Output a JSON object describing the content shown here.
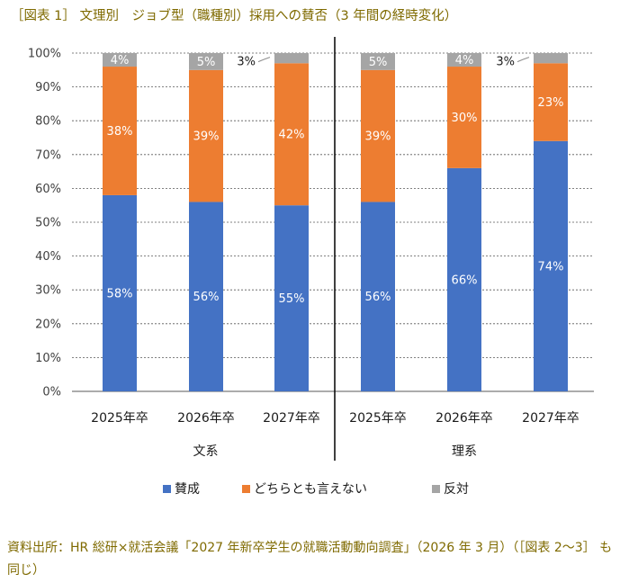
{
  "title": "［図表 1］ 文理別　ジョブ型（職種別）採用への賛否（3 年間の経時変化）",
  "source": "資料出所：HR 総研×就活会議「2027 年新卒学生の就職活動動向調査」（2026 年 3 月）（［図表 2～3］ も同じ）",
  "chart_data": {
    "type": "bar",
    "stacked": true,
    "ylim": [
      0,
      100
    ],
    "yticks": [
      "0%",
      "10%",
      "20%",
      "30%",
      "40%",
      "50%",
      "60%",
      "70%",
      "80%",
      "90%",
      "100%"
    ],
    "groups": [
      "文系",
      "理系"
    ],
    "categories": [
      "2025年卒",
      "2026年卒",
      "2027年卒",
      "2025年卒",
      "2026年卒",
      "2027年卒"
    ],
    "group_of_category": [
      0,
      0,
      0,
      1,
      1,
      1
    ],
    "series": [
      {
        "name": "賛成",
        "color": "#4472c4",
        "values": [
          58,
          56,
          55,
          56,
          66,
          74
        ],
        "labels": [
          "58%",
          "56%",
          "55%",
          "56%",
          "66%",
          "74%"
        ]
      },
      {
        "name": "どちらとも言えない",
        "color": "#ed7d31",
        "values": [
          38,
          39,
          42,
          39,
          30,
          23
        ],
        "labels": [
          "38%",
          "39%",
          "42%",
          "39%",
          "30%",
          "23%"
        ]
      },
      {
        "name": "反対",
        "color": "#a5a5a5",
        "values": [
          4,
          5,
          3,
          5,
          4,
          3
        ],
        "labels": [
          "4%",
          "5%",
          "3%",
          "5%",
          "4%",
          "3%"
        ]
      }
    ],
    "grid": true,
    "legend": "bottom"
  }
}
